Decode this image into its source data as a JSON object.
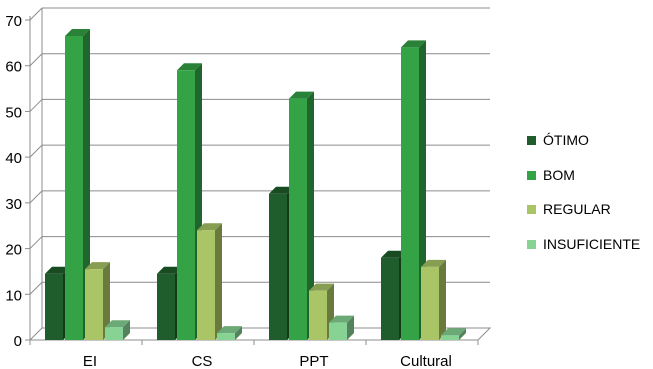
{
  "chart_data": {
    "type": "bar",
    "categories": [
      "EI",
      "CS",
      "PPT",
      "Cultural"
    ],
    "series": [
      {
        "name": "ÓTIMO",
        "values": [
          14.5,
          14.5,
          32,
          18
        ],
        "color": "#1f5e2c"
      },
      {
        "name": "BOM",
        "values": [
          66.5,
          59,
          52.8,
          64
        ],
        "color": "#33a346"
      },
      {
        "name": "REGULAR",
        "values": [
          15.5,
          24,
          10.8,
          16
        ],
        "color": "#a9c566"
      },
      {
        "name": "INSUFICIENTE",
        "values": [
          2.8,
          1.5,
          3.8,
          1
        ],
        "color": "#86d394"
      }
    ],
    "y_ticks": [
      "0",
      "10",
      "20",
      "30",
      "40",
      "50",
      "60",
      "70"
    ],
    "ylim": [
      0,
      70
    ],
    "grid": true,
    "legend_position": "right",
    "title": "",
    "xlabel": "",
    "ylabel": ""
  }
}
